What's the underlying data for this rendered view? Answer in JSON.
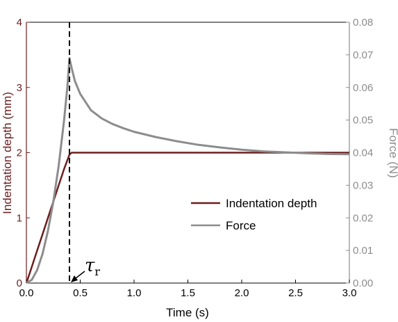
{
  "chart_data": {
    "type": "line",
    "xlabel": "Time (s)",
    "ylabel_left": "Indentation depth (mm)",
    "ylabel_right": "Force (N)",
    "xlim": [
      0,
      3
    ],
    "ylim_left": [
      0,
      4
    ],
    "ylim_right": [
      0,
      0.08
    ],
    "x_ticks": [
      "0.0",
      "0.5",
      "1.0",
      "1.5",
      "2.0",
      "2.5",
      "3.0"
    ],
    "y_left_ticks": [
      "0",
      "1",
      "2",
      "3",
      "4"
    ],
    "y_right_ticks": [
      "0.00",
      "0.01",
      "0.02",
      "0.03",
      "0.04",
      "0.05",
      "0.06",
      "0.07",
      "0.08"
    ],
    "grid": false,
    "legend_position": "center-right",
    "series": [
      {
        "name": "Indentation depth",
        "axis": "left",
        "color": "#6b1e1e",
        "x": [
          0,
          0.05,
          0.1,
          0.15,
          0.2,
          0.25,
          0.3,
          0.35,
          0.4,
          0.42,
          0.45,
          0.5,
          1.0,
          1.5,
          2.0,
          2.5,
          3.0
        ],
        "y": [
          0,
          0.25,
          0.5,
          0.75,
          1.0,
          1.25,
          1.5,
          1.75,
          1.97,
          2.0,
          2.0,
          2.0,
          2.0,
          2.0,
          2.0,
          2.0,
          2.0
        ]
      },
      {
        "name": "Force",
        "axis": "right",
        "color": "#8c8c8c",
        "x": [
          0,
          0.05,
          0.1,
          0.15,
          0.2,
          0.25,
          0.3,
          0.35,
          0.38,
          0.4,
          0.42,
          0.45,
          0.5,
          0.6,
          0.7,
          0.8,
          0.9,
          1.0,
          1.2,
          1.4,
          1.6,
          1.8,
          2.0,
          2.2,
          2.4,
          2.6,
          2.8,
          3.0
        ],
        "y": [
          0,
          0.001,
          0.004,
          0.009,
          0.016,
          0.025,
          0.036,
          0.05,
          0.06,
          0.069,
          0.066,
          0.062,
          0.058,
          0.053,
          0.0505,
          0.0488,
          0.0475,
          0.0464,
          0.0448,
          0.0435,
          0.0424,
          0.0416,
          0.0409,
          0.0404,
          0.0401,
          0.0398,
          0.0396,
          0.0395
        ]
      }
    ],
    "annotations": [
      {
        "type": "vline",
        "x": 0.4,
        "style": "dashed",
        "color": "#000000"
      },
      {
        "type": "arrow-label",
        "text": "τ",
        "subscript": "r",
        "x": 0.4,
        "y_left": 0
      }
    ],
    "left_axis_color": "#6b1e1e",
    "right_axis_color": "#8c8c8c"
  }
}
